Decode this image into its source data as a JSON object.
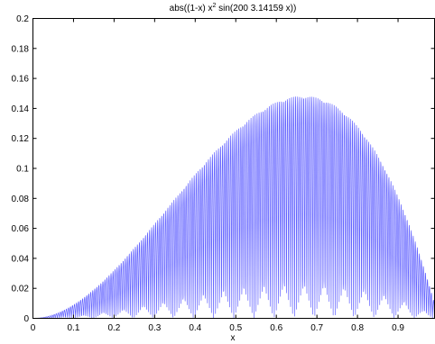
{
  "chart_data": {
    "type": "line",
    "title": {
      "prefix": "abs((1-x) x",
      "superscript": "2",
      "suffix": " sin(200 3.14159 x))"
    },
    "xlabel": "x",
    "ylabel": "",
    "xlim": [
      0,
      0.99
    ],
    "ylim": [
      0,
      0.2
    ],
    "xticks": [
      "0",
      "0.1",
      "0.2",
      "0.3",
      "0.4",
      "0.5",
      "0.6",
      "0.7",
      "0.8",
      "0.9"
    ],
    "yticks": [
      "0",
      "0.02",
      "0.04",
      "0.06",
      "0.08",
      "0.1",
      "0.12",
      "0.14",
      "0.16",
      "0.18",
      "0.2"
    ],
    "grid": false,
    "legend": "none",
    "series": [
      {
        "function": "abs((1-x) x^2 sin(200 3.14159 x))",
        "x_range": [
          0,
          0.99
        ],
        "color": "#0000ff"
      }
    ]
  }
}
